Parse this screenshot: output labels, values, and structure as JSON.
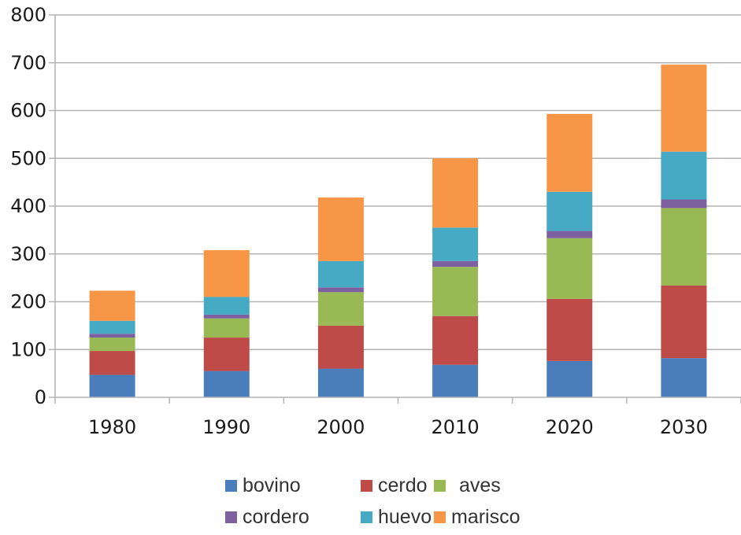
{
  "chart_data": {
    "type": "bar",
    "stacked": true,
    "categories": [
      "1980",
      "1990",
      "2000",
      "2010",
      "2020",
      "2030"
    ],
    "series": [
      {
        "name": "bovino",
        "color": "#4a7ebb",
        "values": [
          47,
          55,
          60,
          68,
          76,
          82
        ]
      },
      {
        "name": "cerdo",
        "color": "#be4b48",
        "values": [
          50,
          70,
          90,
          102,
          130,
          152
        ]
      },
      {
        "name": "aves",
        "color": "#98b954",
        "values": [
          28,
          40,
          70,
          103,
          127,
          162
        ]
      },
      {
        "name": "cordero",
        "color": "#7d60a0",
        "values": [
          8,
          8,
          10,
          12,
          15,
          18
        ]
      },
      {
        "name": "huevo",
        "color": "#46aac5",
        "values": [
          27,
          37,
          55,
          70,
          82,
          100
        ]
      },
      {
        "name": "marisco",
        "color": "#f79646",
        "values": [
          63,
          98,
          133,
          145,
          163,
          182
        ]
      }
    ],
    "ylim": [
      0,
      800
    ],
    "yticks": [
      "0",
      "100",
      "200",
      "300",
      "400",
      "500",
      "600",
      "700",
      "800"
    ],
    "grid": true,
    "legend_position": "bottom"
  }
}
